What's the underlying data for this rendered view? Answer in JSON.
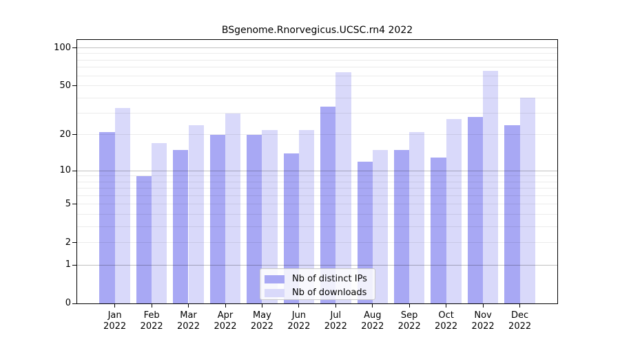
{
  "chart_data": {
    "type": "bar",
    "title": "BSgenome.Rnorvegicus.UCSC.rn4 2022",
    "categories": [
      "Jan",
      "Feb",
      "Mar",
      "Apr",
      "May",
      "Jun",
      "Jul",
      "Aug",
      "Sep",
      "Oct",
      "Nov",
      "Dec"
    ],
    "category_year_line": "2022",
    "series": [
      {
        "name": "Nb of distinct IPs",
        "color": "#a8a8f4",
        "values": [
          21,
          9,
          15,
          20,
          20,
          14,
          34,
          12,
          15,
          13,
          28,
          24
        ]
      },
      {
        "name": "Nb of downloads",
        "color": "#d9d9fa",
        "values": [
          33,
          17,
          24,
          30,
          22,
          22,
          64,
          15,
          21,
          27,
          66,
          40
        ]
      }
    ],
    "y_axis": {
      "scale": "log1p",
      "ylim": [
        0,
        100
      ],
      "ticks": [
        100,
        50,
        20,
        10,
        5,
        2,
        1,
        0
      ],
      "minor_gridlines": [
        1,
        2,
        3,
        4,
        5,
        6,
        7,
        8,
        9,
        10,
        20,
        30,
        40,
        50,
        60,
        70,
        80,
        90,
        100
      ],
      "grid": true
    },
    "legend": {
      "position": "inside-bottom-center"
    },
    "colors": {
      "axis": "#000000",
      "grid_decade": "#c6c6c6",
      "grid_minor": "#ececec",
      "background": "#ffffff",
      "legend_border": "#c9c9c9"
    }
  }
}
